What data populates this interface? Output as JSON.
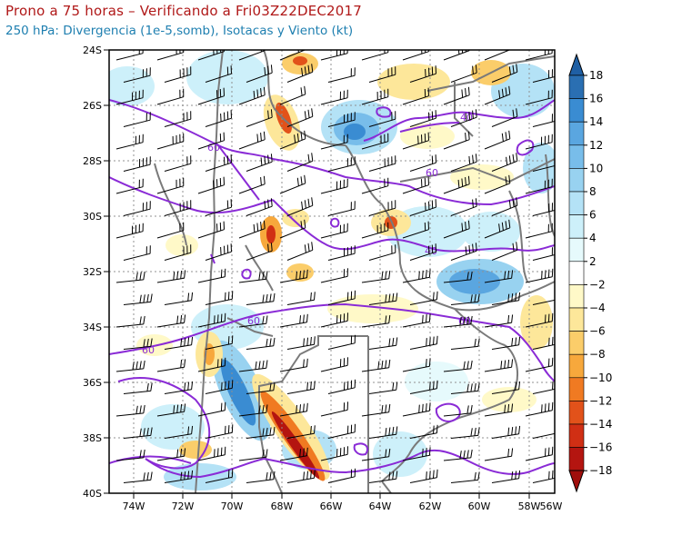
{
  "header": {
    "title": "Prono a 75 horas – Verificando a Fri03Z22DEC2017",
    "subtitle": "250 hPa: Divergencia (1e-5,somb), Isotacas y Viento (kt)"
  },
  "map": {
    "lat_labels": [
      "24S",
      "26S",
      "28S",
      "30S",
      "32S",
      "34S",
      "36S",
      "38S",
      "40S"
    ],
    "lon_labels": [
      "74W",
      "72W",
      "70W",
      "68W",
      "66W",
      "64W",
      "62W",
      "60W",
      "58W",
      "56W"
    ],
    "isotach_labels": [
      "60",
      "40",
      "60",
      "40",
      "60",
      "60",
      "60"
    ]
  },
  "colorbar": {
    "labels": [
      "18",
      "16",
      "14",
      "12",
      "10",
      "8",
      "6",
      "4",
      "2",
      "−2",
      "−4",
      "−6",
      "−8",
      "−10",
      "−12",
      "−14",
      "−16",
      "−18"
    ],
    "colors": [
      "#2a6fb2",
      "#3a8cd2",
      "#5aa6e0",
      "#78bdea",
      "#98d2f0",
      "#b4e2f6",
      "#cdf0fa",
      "#e6fafc",
      "#ffffff",
      "#fff9c8",
      "#fde79a",
      "#fbcd6a",
      "#f7a83c",
      "#f07a22",
      "#e2521a",
      "#d02f14",
      "#b41510"
    ]
  }
}
